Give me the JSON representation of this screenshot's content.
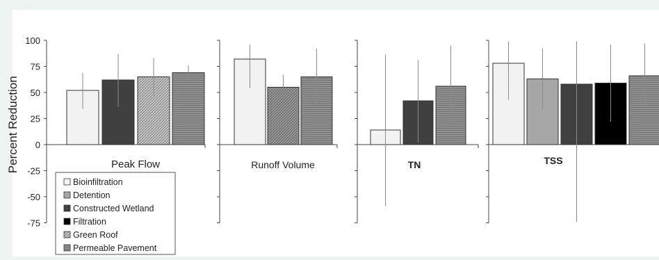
{
  "chart_data": {
    "type": "bar",
    "ylabel": "Percent Reduction",
    "ylim": [
      -75,
      100
    ],
    "yticks": [
      "100",
      "75",
      "50",
      "25",
      "0",
      "-25",
      "-50",
      "-75"
    ],
    "grid": false,
    "legend_position": "bottom-left",
    "legend": [
      {
        "name": "Bioinfiltration",
        "color": "#f2f2f2"
      },
      {
        "name": "Detention",
        "color": "#a6a6a6"
      },
      {
        "name": "Constructed Wetland",
        "color": "#404040"
      },
      {
        "name": "Filtration",
        "color": "#000000"
      },
      {
        "name": "Green Roof",
        "color": "#bdbdbd"
      },
      {
        "name": "Permeable Pavement",
        "color": "#8c8c8c"
      }
    ],
    "panels": [
      {
        "title": "Peak Flow",
        "bars": [
          {
            "series": "Bioinfiltration",
            "value": 52,
            "err_low": 34,
            "err_high": 69
          },
          {
            "series": "Constructed Wetland",
            "value": 62,
            "err_low": 36,
            "err_high": 87
          },
          {
            "series": "Green Roof",
            "value": 65,
            "err_low": 47,
            "err_high": 83
          },
          {
            "series": "Permeable Pavement",
            "value": 69,
            "err_low": 62,
            "err_high": 76
          }
        ]
      },
      {
        "title": "Runoff Volume",
        "bars": [
          {
            "series": "Bioinfiltration",
            "value": 82,
            "err_low": 54,
            "err_high": 96
          },
          {
            "series": "Green Roof",
            "value": 55,
            "err_low": 42,
            "err_high": 67
          },
          {
            "series": "Permeable Pavement",
            "value": 65,
            "err_low": 38,
            "err_high": 92
          }
        ]
      },
      {
        "title": "TN",
        "bars": [
          {
            "series": "Bioinfiltration",
            "value": 14,
            "err_low": -59,
            "err_high": 86
          },
          {
            "series": "Constructed Wetland",
            "value": 42,
            "err_low": 2,
            "err_high": 81
          },
          {
            "series": "Permeable Pavement",
            "value": 56,
            "err_low": 20,
            "err_high": 95
          }
        ]
      },
      {
        "title": "TSS",
        "bars": [
          {
            "series": "Bioinfiltration",
            "value": 78,
            "err_low": 43,
            "err_high": 99
          },
          {
            "series": "Detention",
            "value": 63,
            "err_low": 34,
            "err_high": 92
          },
          {
            "series": "Constructed Wetland",
            "value": 58,
            "err_low": -74,
            "err_high": 99
          },
          {
            "series": "Filtration",
            "value": 59,
            "err_low": 22,
            "err_high": 96
          },
          {
            "series": "Permeable Pavement",
            "value": 66,
            "err_low": 35,
            "err_high": 97
          }
        ]
      }
    ]
  }
}
